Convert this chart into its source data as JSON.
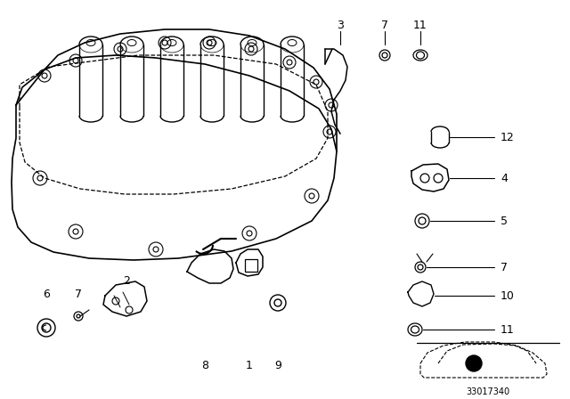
{
  "bg_color": "#ffffff",
  "line_color": "#000000",
  "text_color": "#000000",
  "diagram_code": "33017340"
}
